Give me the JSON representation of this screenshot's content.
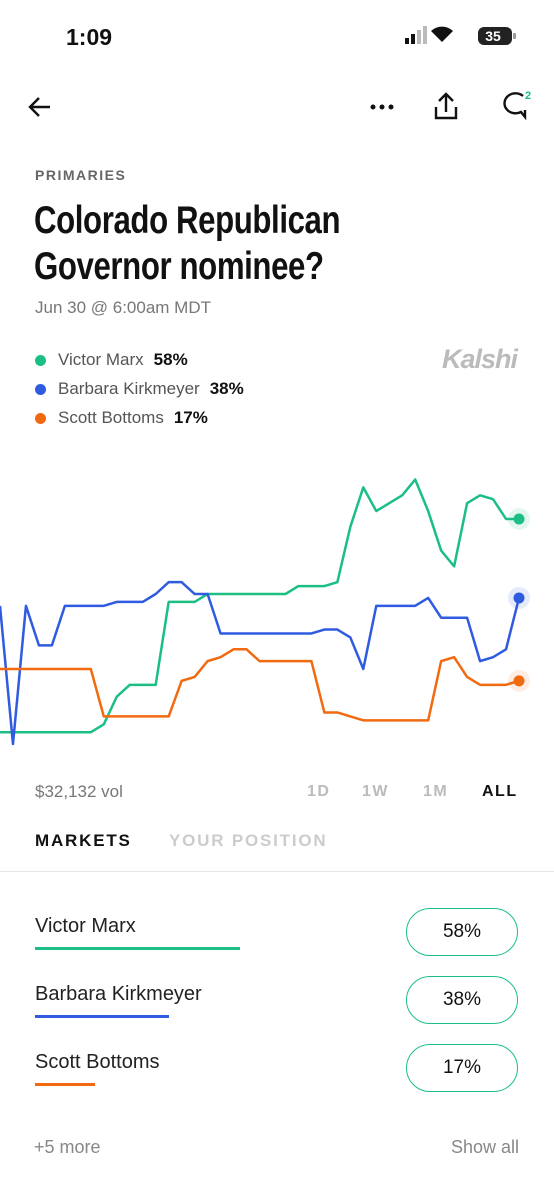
{
  "status_bar": {
    "time": "1:09",
    "battery": "35"
  },
  "toolbar": {
    "comments_badge": "2"
  },
  "category": "PRIMARIES",
  "title": "Colorado Republican Governor nominee?",
  "date": "Jun 30 @ 6:00am MDT",
  "brand": "Kalshi",
  "volume": "$32,132 vol",
  "ranges": [
    "1D",
    "1W",
    "1M",
    "ALL"
  ],
  "selected_range": "ALL",
  "tabs": [
    "MARKETS",
    "YOUR POSITION"
  ],
  "selected_tab": "MARKETS",
  "chart_data": {
    "type": "line",
    "ylim": [
      0,
      78
    ],
    "series": [
      {
        "name": "Victor Marx",
        "color": "#1bbf84",
        "value_label": "58%",
        "values": [
          4,
          4,
          4,
          4,
          4,
          4,
          4,
          4,
          6,
          13,
          16,
          16,
          16,
          37,
          37,
          37,
          39,
          39,
          39,
          39,
          39,
          39,
          39,
          41,
          41,
          41,
          42,
          56,
          66,
          60,
          62,
          64,
          68,
          60,
          50,
          46,
          62,
          64,
          63,
          58,
          58
        ]
      },
      {
        "name": "Barbara Kirkmeyer",
        "color": "#2f5be0",
        "value_label": "38%",
        "values": [
          36,
          1,
          36,
          26,
          26,
          36,
          36,
          36,
          36,
          37,
          37,
          37,
          39,
          42,
          42,
          39,
          39,
          29,
          29,
          29,
          29,
          29,
          29,
          29,
          29,
          30,
          30,
          28,
          20,
          36,
          36,
          36,
          36,
          38,
          33,
          33,
          33,
          22,
          23,
          25,
          38
        ]
      },
      {
        "name": "Scott Bottoms",
        "color": "#f26a10",
        "value_label": "17%",
        "values": [
          20,
          20,
          20,
          20,
          20,
          20,
          20,
          20,
          8,
          8,
          8,
          8,
          8,
          8,
          17,
          18,
          22,
          23,
          25,
          25,
          22,
          22,
          22,
          22,
          22,
          9,
          9,
          8,
          7,
          7,
          7,
          7,
          7,
          7,
          22,
          23,
          18,
          16,
          16,
          16,
          17
        ]
      }
    ]
  },
  "footer": {
    "more": "+5 more",
    "show_all": "Show all"
  }
}
